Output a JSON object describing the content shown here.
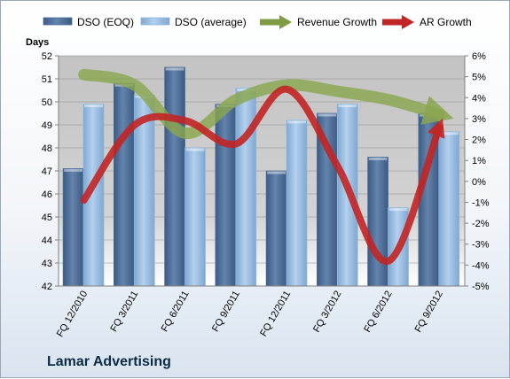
{
  "chart_data": {
    "type": "bar",
    "subtitle": "Lamar Advertising",
    "ylabel": "Days",
    "categories": [
      "FQ 12/2010",
      "FQ 3/2011",
      "FQ 6/2011",
      "FQ 9/2011",
      "FQ 12/2011",
      "FQ 3/2012",
      "FQ 6/2012",
      "FQ 9/2012"
    ],
    "ylim": [
      42,
      52
    ],
    "yticks": [
      "42",
      "43",
      "44",
      "45",
      "46",
      "47",
      "48",
      "49",
      "50",
      "51",
      "52"
    ],
    "y2lim": [
      -5,
      6
    ],
    "y2ticks": [
      "-5%",
      "-4%",
      "-3%",
      "-2%",
      "-1%",
      "0%",
      "1%",
      "2%",
      "3%",
      "4%",
      "5%",
      "6%"
    ],
    "series": [
      {
        "name": "DSO (EOQ)",
        "type": "bar",
        "axis": "left",
        "values": [
          47.1,
          50.8,
          51.5,
          49.9,
          47.0,
          49.5,
          47.6,
          49.5
        ]
      },
      {
        "name": "DSO (average)",
        "type": "bar",
        "axis": "left",
        "values": [
          49.9,
          50.3,
          48.0,
          50.6,
          49.2,
          49.9,
          45.4,
          48.7
        ]
      },
      {
        "name": "Revenue Growth",
        "type": "line",
        "axis": "right",
        "values": [
          5.1,
          4.6,
          2.3,
          3.9,
          4.6,
          4.3,
          3.9,
          3.2
        ]
      },
      {
        "name": "AR Growth",
        "type": "line",
        "axis": "right",
        "values": [
          -0.9,
          2.7,
          2.9,
          1.8,
          4.4,
          0.7,
          -3.8,
          2.6
        ]
      }
    ],
    "grid": true,
    "legend": "top",
    "colors": {
      "dso_eoq": "#4f6f98",
      "dso_avg": "#8fb7de",
      "revenue_growth": "#7f9b45",
      "ar_growth": "#c22525",
      "plot_bg": "#cccccc"
    }
  }
}
